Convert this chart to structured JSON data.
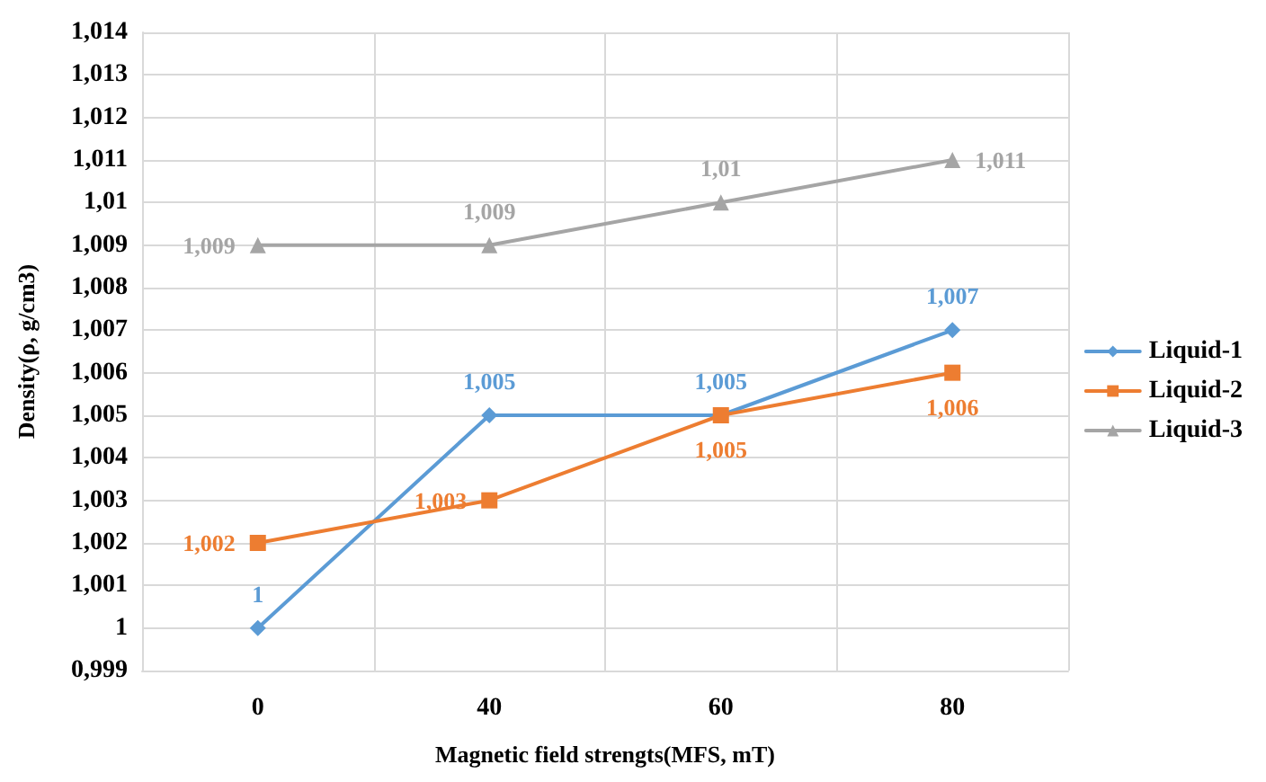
{
  "chart_data": {
    "type": "line",
    "xlabel": "Magnetic field strengts(MFS, mT)",
    "ylabel": "Density(ρ, g/cm3)",
    "categories": [
      "0",
      "40",
      "60",
      "80"
    ],
    "series": [
      {
        "name": "Liquid-1",
        "color": "#5b9bd5",
        "marker": "diamond",
        "values": [
          1,
          1.005,
          1.005,
          1.007
        ],
        "value_labels": [
          "1",
          "1,005",
          "1,005",
          "1,007"
        ]
      },
      {
        "name": "Liquid-2",
        "color": "#ed7d31",
        "marker": "square",
        "values": [
          1.002,
          1.003,
          1.005,
          1.006
        ],
        "value_labels": [
          "1,002",
          "1,003",
          "1,005",
          "1,006"
        ]
      },
      {
        "name": "Liquid-3",
        "color": "#a5a5a5",
        "marker": "triangle",
        "values": [
          1.009,
          1.009,
          1.01,
          1.011
        ],
        "value_labels": [
          "1,009",
          "1,009",
          "1,01",
          "1,011"
        ]
      }
    ],
    "ylim": [
      0.999,
      1.014
    ],
    "yticks": [
      {
        "value": 0.999,
        "label": "0,999"
      },
      {
        "value": 1,
        "label": "1"
      },
      {
        "value": 1.001,
        "label": "1,001"
      },
      {
        "value": 1.002,
        "label": "1,002"
      },
      {
        "value": 1.003,
        "label": "1,003"
      },
      {
        "value": 1.004,
        "label": "1,004"
      },
      {
        "value": 1.005,
        "label": "1,005"
      },
      {
        "value": 1.006,
        "label": "1,006"
      },
      {
        "value": 1.007,
        "label": "1,007"
      },
      {
        "value": 1.008,
        "label": "1,008"
      },
      {
        "value": 1.009,
        "label": "1,009"
      },
      {
        "value": 1.01,
        "label": "1,01"
      },
      {
        "value": 1.011,
        "label": "1,011"
      },
      {
        "value": 1.012,
        "label": "1,012"
      },
      {
        "value": 1.013,
        "label": "1,013"
      },
      {
        "value": 1.014,
        "label": "1,014"
      }
    ],
    "grid": true,
    "legend": "right",
    "line_style": "solid"
  }
}
